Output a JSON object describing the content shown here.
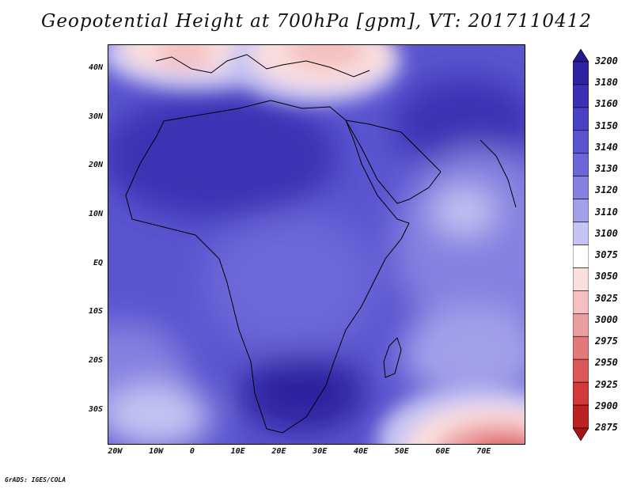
{
  "title": "Geopotential Height at 700hPa [gpm], VT: 2017110412",
  "credit": "GrADS: IGES/COLA",
  "map": {
    "lon_range": [
      -22,
      80
    ],
    "lat_range": [
      -37,
      45
    ],
    "lat_ticks": [
      {
        "value": 40,
        "label": "40N"
      },
      {
        "value": 30,
        "label": "30N"
      },
      {
        "value": 20,
        "label": "20N"
      },
      {
        "value": 10,
        "label": "10N"
      },
      {
        "value": 0,
        "label": "EQ"
      },
      {
        "value": -10,
        "label": "10S"
      },
      {
        "value": -20,
        "label": "20S"
      },
      {
        "value": -30,
        "label": "30S"
      }
    ],
    "lon_ticks": [
      {
        "value": -20,
        "label": "20W"
      },
      {
        "value": -10,
        "label": "10W"
      },
      {
        "value": 0,
        "label": "0"
      },
      {
        "value": 10,
        "label": "10E"
      },
      {
        "value": 20,
        "label": "20E"
      },
      {
        "value": 30,
        "label": "30E"
      },
      {
        "value": 40,
        "label": "40E"
      },
      {
        "value": 50,
        "label": "50E"
      },
      {
        "value": 60,
        "label": "60E"
      },
      {
        "value": 70,
        "label": "70E"
      }
    ]
  },
  "colorbar": {
    "levels": [
      "3200",
      "3180",
      "3160",
      "3150",
      "3140",
      "3130",
      "3120",
      "3110",
      "3100",
      "3075",
      "3050",
      "3025",
      "3000",
      "2975",
      "2950",
      "2925",
      "2900",
      "2875"
    ],
    "colors": [
      "#241a8c",
      "#2e23a0",
      "#3a31b4",
      "#4a42c4",
      "#5a55cf",
      "#6c67d8",
      "#8581e0",
      "#a3a0ea",
      "#c6c4f3",
      "#ffffff",
      "#fbdede",
      "#f4c0c0",
      "#ec9e9e",
      "#e37a7a",
      "#db5959",
      "#d03a3a",
      "#bb2222",
      "#a11515"
    ]
  }
}
